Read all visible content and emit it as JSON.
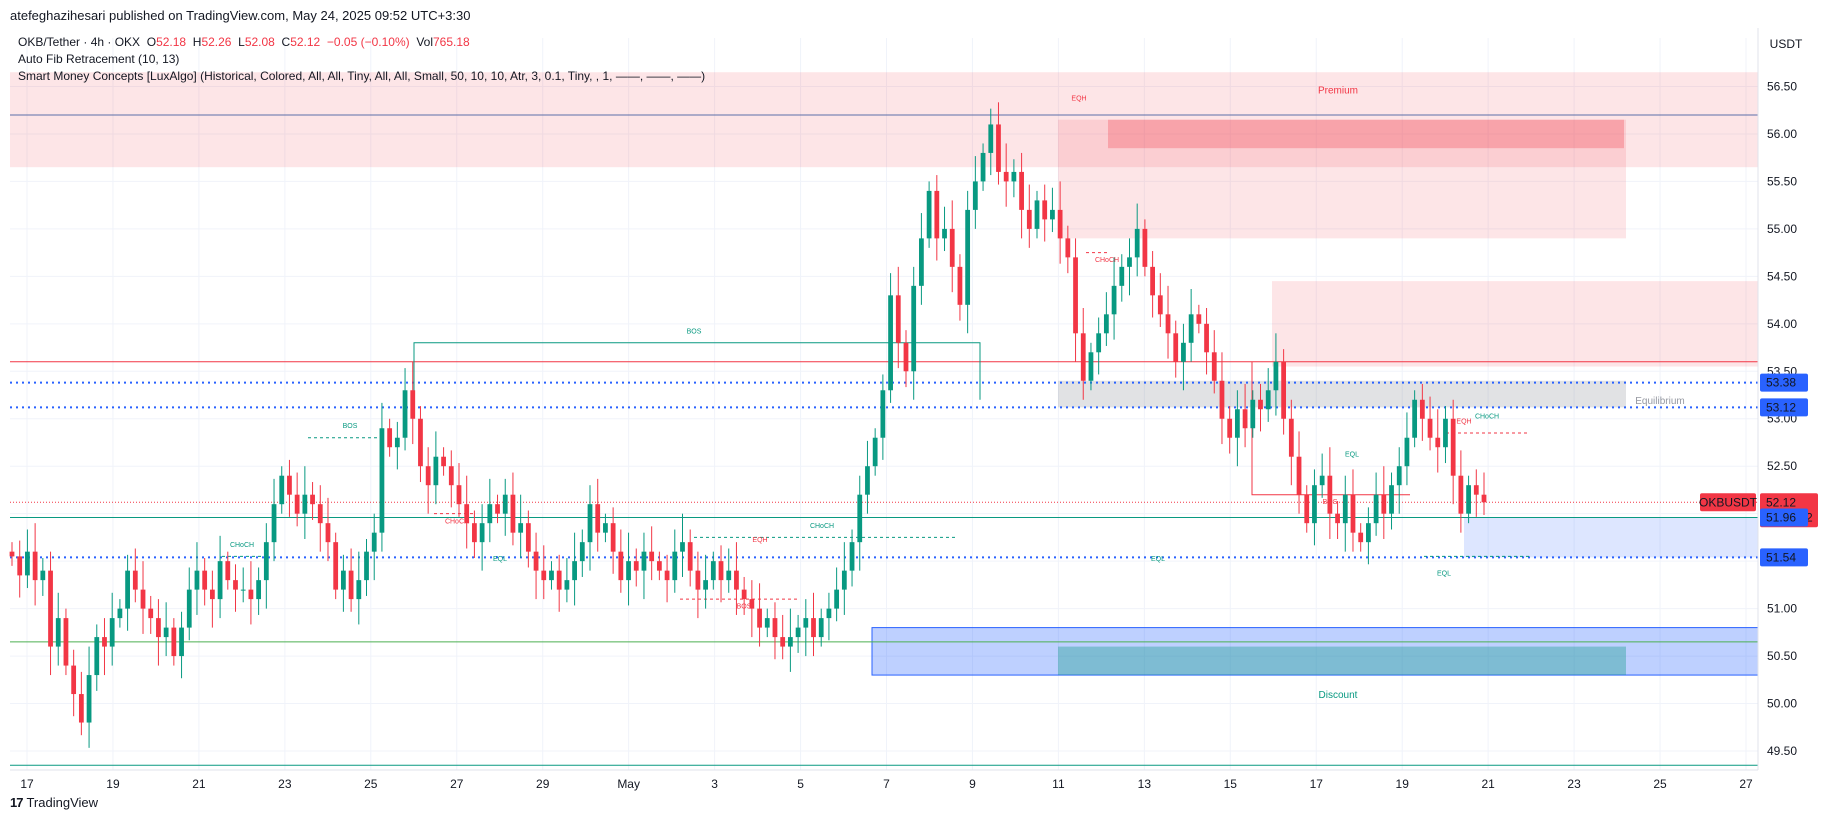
{
  "header": {
    "published": "atefeghazihesari published on TradingView.com, May 24, 2025 09:52 UTC+3:30"
  },
  "legend": {
    "symbol": "OKB/Tether · 4h · OKX",
    "o_label": "O",
    "o": "52.18",
    "h_label": "H",
    "h": "52.26",
    "l_label": "L",
    "l": "52.08",
    "c_label": "C",
    "c": "52.12",
    "change": "−0.05 (−0.10%)",
    "vol_label": "Vol",
    "vol": "765.18",
    "indicator1": "Auto Fib Retracement (10, 13)",
    "indicator2": "Smart Money Concepts [LuxAlgo] (Historical, Colored, All, All, Tiny, All, All, Small, 50, 10, 10, Atr, 3, 0.1, Tiny, , 1, ——, ——, ——)"
  },
  "brand": {
    "name": "TradingView"
  },
  "colors": {
    "up": "#089981",
    "down": "#f23645",
    "accent": "#2962ff"
  },
  "chart_data": {
    "type": "candlestick",
    "currency": "USDT",
    "ylim": [
      49.3,
      56.8
    ],
    "y_ticks": [
      "56.50",
      "56.00",
      "55.50",
      "55.00",
      "54.50",
      "54.00",
      "53.50",
      "53.00",
      "52.50",
      "52.00",
      "51.50",
      "51.00",
      "50.50",
      "50.00",
      "49.50"
    ],
    "x_ticks": [
      "17",
      "19",
      "21",
      "23",
      "25",
      "27",
      "29",
      "May",
      "3",
      "5",
      "7",
      "9",
      "11",
      "13",
      "15",
      "17",
      "19",
      "21",
      "23",
      "25",
      "27"
    ],
    "price_tags": [
      {
        "value": "53.38"
      },
      {
        "value": "53.12"
      },
      {
        "symbol": "OKBUSDT",
        "value": "52.12",
        "countdown": "01:37:02"
      },
      {
        "value": "51.96"
      },
      {
        "value": "51.54"
      }
    ],
    "zones": {
      "premium": "Premium",
      "equilibrium": "Equilibrium",
      "discount": "Discount"
    },
    "structure_labels": [
      "BOS",
      "BOS",
      "CHoCH",
      "CHoCH",
      "EQL",
      "EQH",
      "CHoCH",
      "BOS",
      "EQH",
      "CHoCH",
      "EQL",
      "BOS",
      "EQL",
      "EQH",
      "CHoCH",
      "EQL"
    ],
    "series": [
      {
        "name": "OKBUSDT",
        "closes": [
          51.55,
          51.35,
          51.6,
          51.3,
          51.4,
          50.6,
          50.9,
          50.4,
          50.1,
          49.8,
          50.3,
          50.7,
          50.6,
          50.9,
          51.0,
          51.4,
          51.2,
          51.0,
          50.9,
          50.7,
          50.8,
          50.5,
          50.8,
          51.2,
          51.4,
          51.2,
          51.1,
          51.5,
          51.3,
          51.2,
          51.2,
          51.1,
          51.3,
          51.7,
          52.1,
          52.4,
          52.2,
          52.0,
          52.2,
          52.1,
          51.9,
          51.7,
          51.2,
          51.4,
          51.1,
          51.3,
          51.6,
          51.8,
          52.9,
          52.7,
          52.8,
          53.3,
          53.0,
          52.5,
          52.3,
          52.6,
          52.5,
          52.3,
          52.1,
          51.9,
          51.7,
          51.9,
          52.1,
          52.0,
          52.2,
          51.8,
          51.9,
          51.6,
          51.4,
          51.3,
          51.4,
          51.2,
          51.3,
          51.5,
          51.7,
          52.1,
          51.8,
          51.9,
          51.6,
          51.3,
          51.5,
          51.4,
          51.6,
          51.5,
          51.4,
          51.3,
          51.6,
          51.7,
          51.4,
          51.2,
          51.3,
          51.5,
          51.3,
          51.4,
          51.2,
          51.1,
          51.0,
          50.8,
          50.9,
          50.7,
          50.6,
          50.7,
          50.8,
          50.9,
          50.7,
          50.9,
          51.0,
          51.2,
          51.4,
          51.7,
          52.2,
          52.5,
          52.8,
          53.3,
          54.3,
          53.8,
          53.5,
          54.4,
          54.9,
          55.4,
          54.9,
          55.0,
          54.6,
          54.2,
          55.2,
          55.5,
          55.8,
          56.1,
          55.6,
          55.5,
          55.6,
          55.2,
          55.0,
          55.3,
          55.1,
          55.2,
          54.9,
          54.7,
          53.9,
          53.4,
          53.7,
          53.9,
          54.1,
          54.4,
          54.6,
          54.7,
          55.0,
          54.6,
          54.3,
          54.1,
          53.9,
          53.6,
          53.8,
          54.1,
          54.0,
          53.7,
          53.4,
          53.0,
          52.8,
          53.1,
          52.9,
          53.2,
          53.1,
          53.3,
          53.6,
          53.0,
          52.6,
          52.2,
          51.9,
          52.3,
          52.4,
          52.0,
          51.9,
          52.2,
          51.8,
          51.7,
          51.9,
          52.2,
          52.0,
          52.3,
          52.5,
          52.8,
          53.2,
          53.0,
          52.8,
          52.7,
          53.0,
          52.4,
          52.0,
          52.3,
          52.2,
          52.12
        ]
      }
    ]
  }
}
